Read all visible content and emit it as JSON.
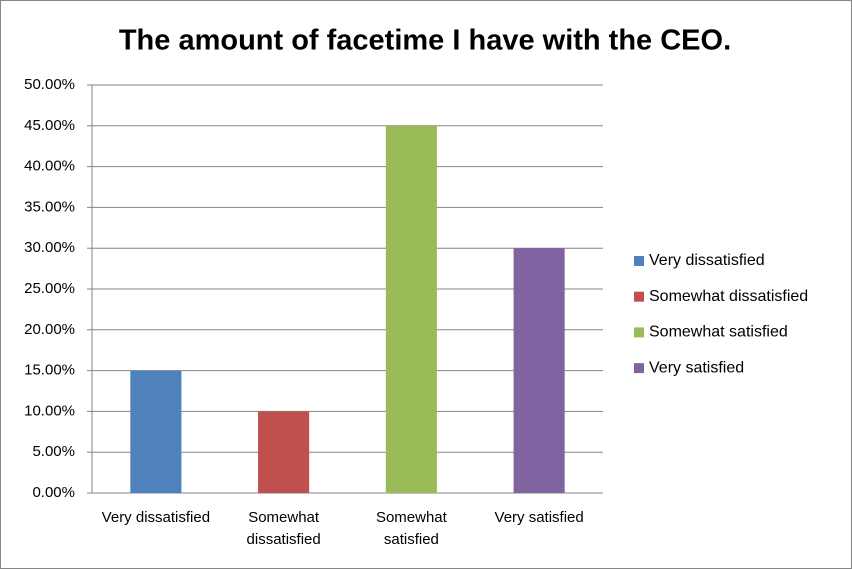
{
  "chart_data": {
    "type": "bar",
    "title": "The amount of facetime I have with the CEO.",
    "categories": [
      "Very dissatisfied",
      "Somewhat dissatisfied",
      "Somewhat satisfied",
      "Very satisfied"
    ],
    "values": [
      15,
      10,
      45,
      30
    ],
    "colors": [
      "#4f81bd",
      "#c0504d",
      "#9bbb59",
      "#8064a2"
    ],
    "ylim": [
      0,
      50
    ],
    "yticks": [
      {
        "value": 0,
        "label": "0.00%"
      },
      {
        "value": 5,
        "label": "5.00%"
      },
      {
        "value": 10,
        "label": "10.00%"
      },
      {
        "value": 15,
        "label": "15.00%"
      },
      {
        "value": 20,
        "label": "20.00%"
      },
      {
        "value": 25,
        "label": "25.00%"
      },
      {
        "value": 30,
        "label": "30.00%"
      },
      {
        "value": 35,
        "label": "35.00%"
      },
      {
        "value": 40,
        "label": "40.00%"
      },
      {
        "value": 45,
        "label": "45.00%"
      },
      {
        "value": 50,
        "label": "50.00%"
      }
    ],
    "grid": true,
    "legend": "right"
  }
}
